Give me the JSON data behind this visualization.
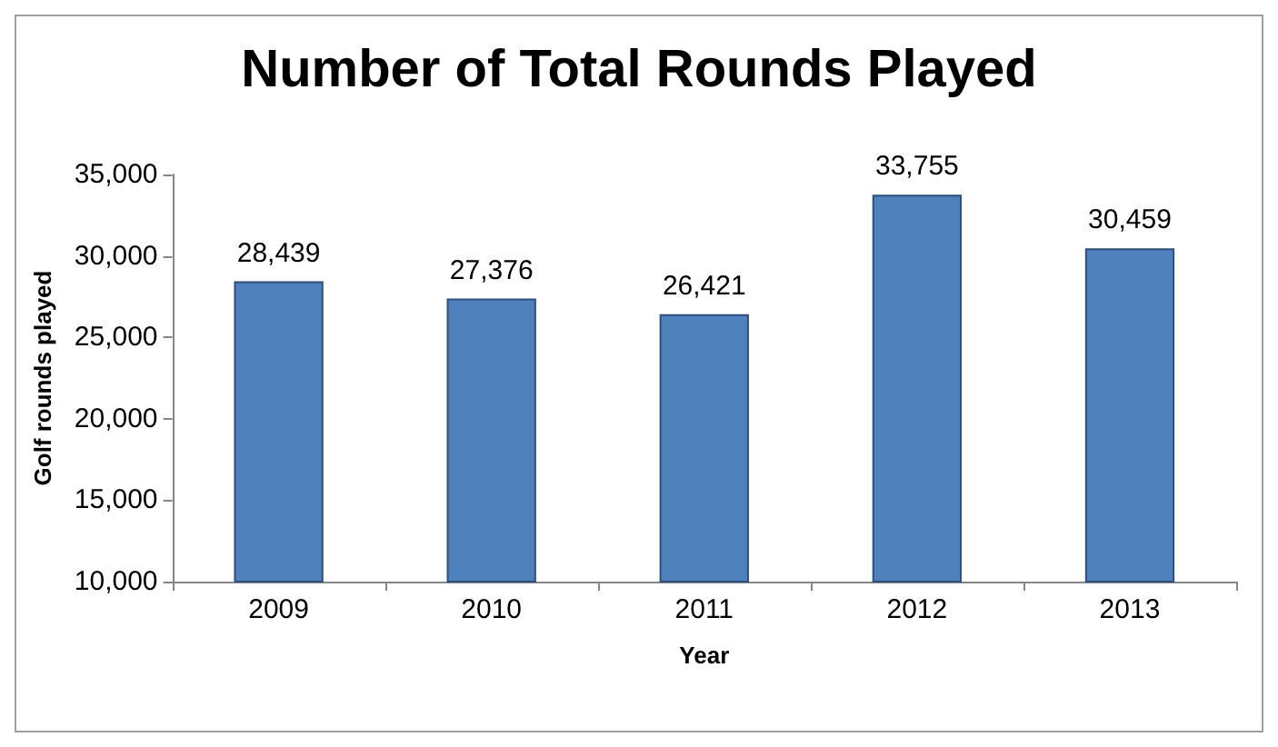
{
  "chart_data": {
    "type": "bar",
    "title": "Number of Total Rounds Played",
    "xlabel": "Year",
    "ylabel": "Golf rounds played",
    "categories": [
      "2009",
      "2010",
      "2011",
      "2012",
      "2013"
    ],
    "values": [
      28439,
      27376,
      26421,
      33755,
      30459
    ],
    "value_labels": [
      "28,439",
      "27,376",
      "26,421",
      "33,755",
      "30,459"
    ],
    "color": "#4f81bd",
    "ylim": [
      10000,
      35000
    ],
    "yticks": [
      {
        "value": 10000,
        "label": "10,000"
      },
      {
        "value": 15000,
        "label": "15,000"
      },
      {
        "value": 20000,
        "label": "20,000"
      },
      {
        "value": 25000,
        "label": "25,000"
      },
      {
        "value": 30000,
        "label": "30,000"
      },
      {
        "value": 35000,
        "label": "35,000"
      }
    ],
    "grid": false
  }
}
